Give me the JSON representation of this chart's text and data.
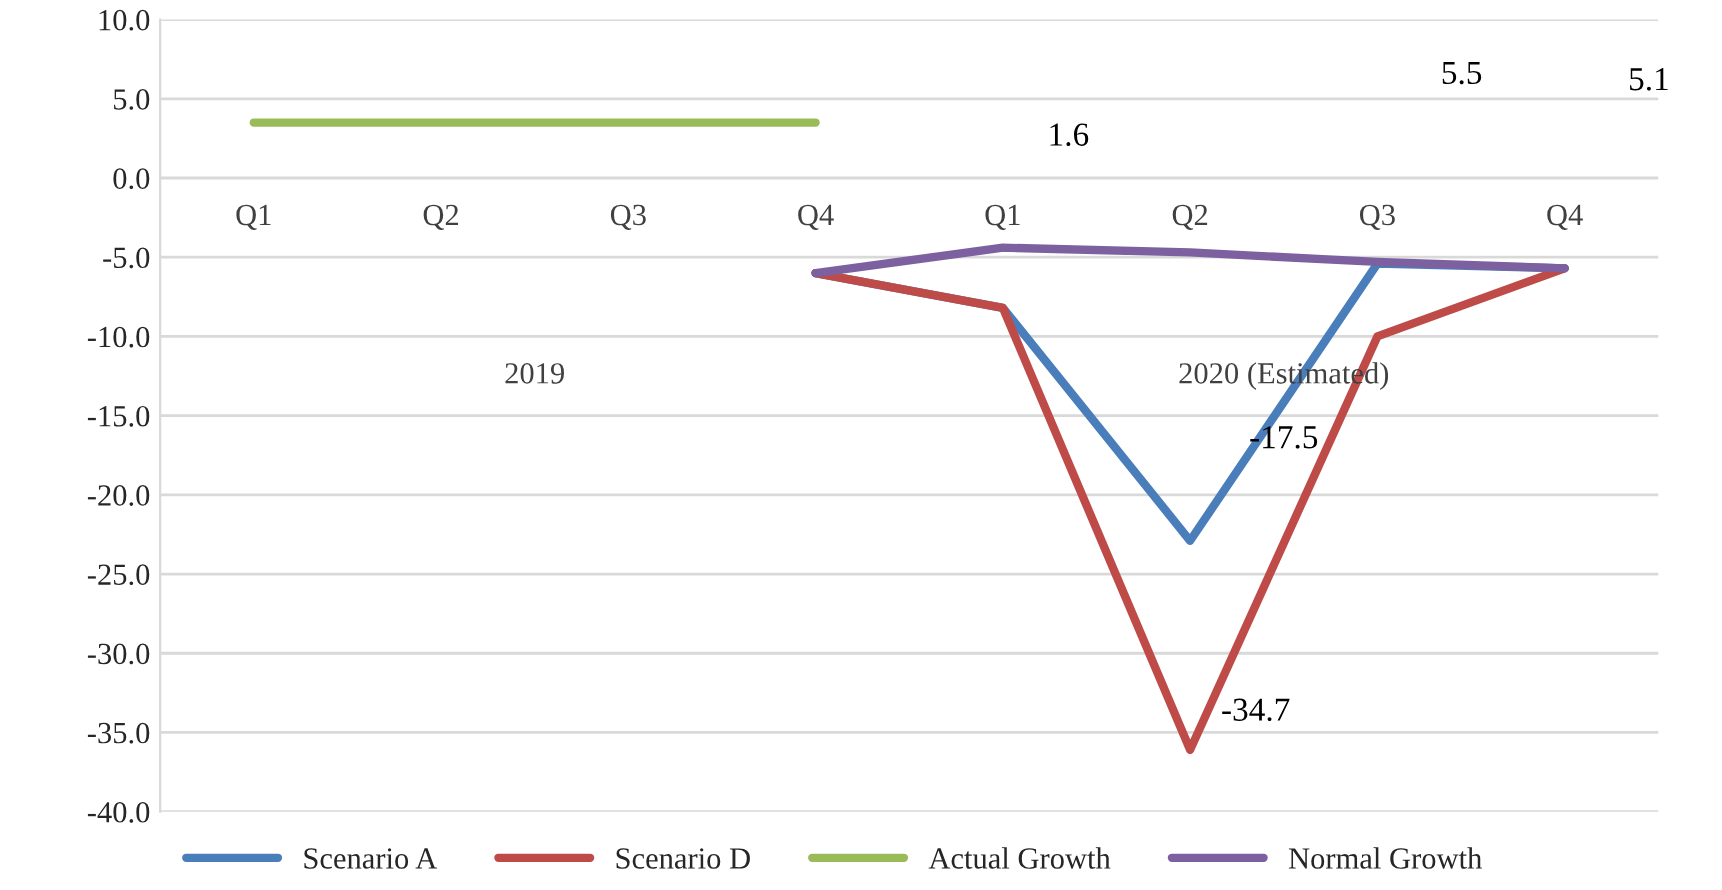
{
  "chart_data": {
    "type": "line",
    "categories": [
      "Q1",
      "Q2",
      "Q3",
      "Q4",
      "Q1",
      "Q2",
      "Q3",
      "Q4"
    ],
    "series": [
      {
        "name": "Scenario A",
        "color": "#4a7ebb",
        "values": [
          null,
          null,
          null,
          -6.0,
          -8.2,
          -22.9,
          -5.4,
          -5.7
        ]
      },
      {
        "name": "Scenario D",
        "color": "#be4b48",
        "values": [
          null,
          null,
          null,
          -6.0,
          -8.2,
          -36.1,
          -10.0,
          -5.7
        ]
      },
      {
        "name": "Actual Growth",
        "color": "#9bbb59",
        "values": [
          3.5,
          3.5,
          3.5,
          3.5,
          null,
          null,
          null,
          null
        ]
      },
      {
        "name": "Normal Growth",
        "color": "#7d60a0",
        "values": [
          null,
          null,
          null,
          -6.0,
          -4.4,
          -4.7,
          -5.3,
          -5.7
        ]
      }
    ],
    "annotations": [
      "2019",
      "2020 (Estimated)",
      "1.6",
      "5.5",
      "5.1",
      "-17.5",
      "-34.7"
    ],
    "ylim": [
      -40,
      10
    ],
    "yticks": [
      {
        "value": -40,
        "label": "-40.0"
      },
      {
        "value": -35,
        "label": "-35.0"
      },
      {
        "value": -30,
        "label": "-30.0"
      },
      {
        "value": -25,
        "label": "-25.0"
      },
      {
        "value": -20,
        "label": "-20.0"
      },
      {
        "value": -15,
        "label": "-15.0"
      },
      {
        "value": -10,
        "label": "-10.0"
      },
      {
        "value": -5,
        "label": "-5.0"
      },
      {
        "value": 0,
        "label": "0.0"
      },
      {
        "value": 5,
        "label": "5.0"
      },
      {
        "value": 10,
        "label": "10.0"
      }
    ],
    "grid": "y",
    "legend": "bottom",
    "marker": "none",
    "line_style": "solid"
  }
}
